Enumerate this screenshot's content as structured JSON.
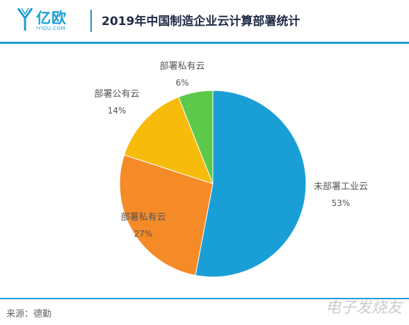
{
  "header": {
    "logo_cn": "亿欧",
    "logo_en": "IYIOU.COM",
    "title": "2019年中国制造企业云计算部署统计"
  },
  "chart_data": {
    "type": "pie",
    "slices": [
      {
        "label": "未部署工业云",
        "value": 53,
        "display": "53%",
        "color": "#1a9ed6"
      },
      {
        "label": "部署私有云",
        "value": 27,
        "display": "27%",
        "color": "#f58b27"
      },
      {
        "label": "部署公有云",
        "value": 14,
        "display": "14%",
        "color": "#f7bc0b"
      },
      {
        "label": "部署私有云",
        "value": 6,
        "display": "6%",
        "color": "#5cc94b"
      }
    ]
  },
  "footer": {
    "source": "来源：德勤",
    "watermark": "电子发烧友"
  }
}
